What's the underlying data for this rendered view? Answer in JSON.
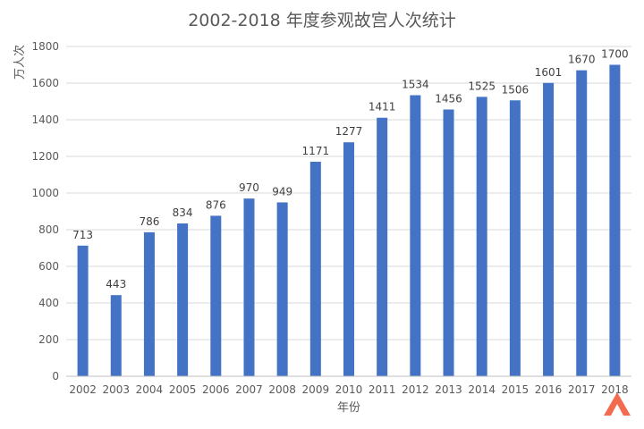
{
  "chart_data": {
    "type": "bar",
    "title": "2002-2018 年度参观故宫人次统计",
    "xlabel": "年份",
    "ylabel": "万人次",
    "ylim": [
      0,
      1800
    ],
    "yticks": [
      0,
      200,
      400,
      600,
      800,
      1000,
      1200,
      1400,
      1600,
      1800
    ],
    "grid": true,
    "bar_color": "#4472C4",
    "categories": [
      "2002",
      "2003",
      "2004",
      "2005",
      "2006",
      "2007",
      "2008",
      "2009",
      "2010",
      "2011",
      "2012",
      "2013",
      "2014",
      "2015",
      "2016",
      "2017",
      "2018"
    ],
    "values": [
      713,
      443,
      786,
      834,
      876,
      970,
      949,
      1171,
      1277,
      1411,
      1534,
      1456,
      1525,
      1506,
      1601,
      1670,
      1700
    ],
    "data_labels": true
  },
  "watermark": {
    "icon": "brand-logo-icon",
    "color": "#F26B4F"
  }
}
